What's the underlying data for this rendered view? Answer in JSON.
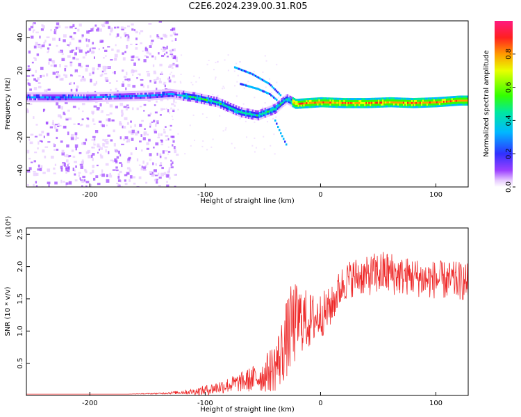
{
  "figure_title": "C2E6.2024.239.00.31.R05",
  "chart_data": [
    {
      "type": "heatmap",
      "xlabel": "Height of straight line (km)",
      "ylabel": "Frequency (Hz)",
      "xlim": [
        -255,
        128
      ],
      "ylim": [
        -50,
        50
      ],
      "xticks": [
        -200,
        -100,
        0,
        100
      ],
      "yticks": [
        -40,
        -20,
        0,
        20,
        40
      ],
      "colorbar": {
        "label": "Normalized spectral amplitude",
        "range": [
          0,
          1
        ],
        "ticks": [
          0.0,
          0.2,
          0.4,
          0.6,
          0.8
        ],
        "tick_labels": [
          "0.0",
          "0.2",
          "0.4",
          "0.6",
          "0.8"
        ]
      },
      "ridge": {
        "x": [
          -255,
          -200,
          -150,
          -130,
          -110,
          -90,
          -70,
          -55,
          -40,
          -30,
          -22,
          0,
          20,
          40,
          60,
          80,
          100,
          120,
          128
        ],
        "y": [
          4,
          4,
          5,
          6,
          4,
          1,
          -5,
          -7,
          -3,
          3,
          0,
          1,
          0.5,
          0.5,
          1,
          0.5,
          1,
          2,
          2
        ]
      },
      "grid": false
    },
    {
      "type": "line",
      "xlabel": "Height of straight line (km)",
      "ylabel": "SNR (10 * v/v)",
      "multiplier": "(x10⁴)",
      "xlim": [
        -255,
        128
      ],
      "ylim": [
        0,
        2.6
      ],
      "xticks": [
        -200,
        -100,
        0,
        100
      ],
      "yticks": [
        0.5,
        1.0,
        1.5,
        2.0,
        2.5
      ],
      "ytick_labels": [
        "0.5",
        "1.0",
        "1.5",
        "2.0",
        "2.5"
      ],
      "series": [
        {
          "color": "#ee2a2a",
          "x": [
            -255,
            -230,
            -200,
            -170,
            -140,
            -130,
            -120,
            -110,
            -100,
            -90,
            -80,
            -70,
            -60,
            -50,
            -40,
            -35,
            -30,
            -25,
            -20,
            -15,
            -10,
            -5,
            0,
            5,
            10,
            15,
            20,
            25,
            30,
            40,
            50,
            60,
            70,
            80,
            90,
            100,
            110,
            120,
            128
          ],
          "y": [
            0.02,
            0.02,
            0.02,
            0.02,
            0.03,
            0.04,
            0.05,
            0.06,
            0.08,
            0.12,
            0.16,
            0.2,
            0.25,
            0.3,
            0.45,
            0.6,
            0.85,
            1.05,
            1.15,
            1.2,
            1.15,
            1.2,
            1.25,
            1.3,
            1.4,
            1.6,
            1.75,
            1.8,
            1.85,
            1.85,
            1.9,
            1.9,
            1.85,
            1.85,
            1.8,
            1.8,
            1.78,
            1.78,
            1.75
          ],
          "noise": [
            0,
            0,
            0,
            0,
            0.01,
            0.02,
            0.03,
            0.05,
            0.08,
            0.1,
            0.12,
            0.15,
            0.2,
            0.25,
            0.4,
            0.5,
            0.6,
            0.7,
            0.6,
            0.5,
            0.45,
            0.4,
            0.35,
            0.35,
            0.3,
            0.3,
            0.3,
            0.3,
            0.3,
            0.3,
            0.35,
            0.35,
            0.3,
            0.3,
            0.3,
            0.3,
            0.3,
            0.3,
            0.3
          ]
        }
      ],
      "grid": false
    }
  ]
}
